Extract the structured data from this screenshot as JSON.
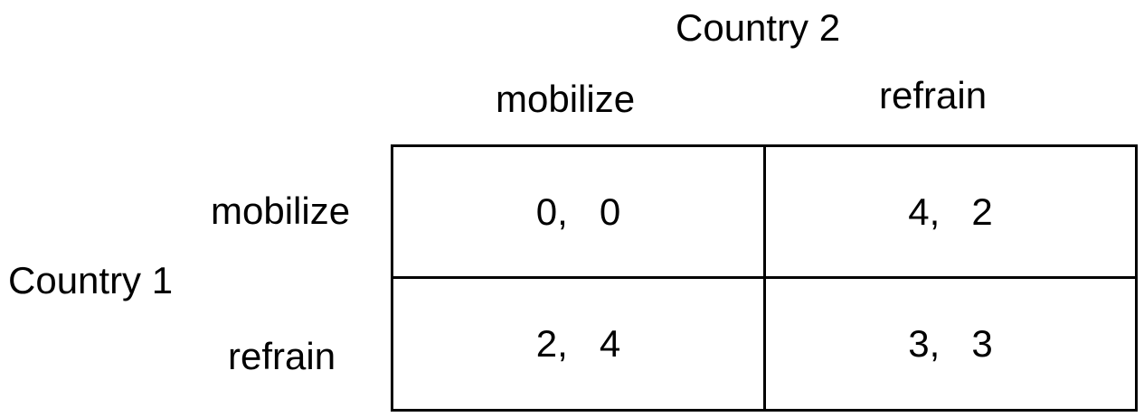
{
  "player2": {
    "name": "Country 2"
  },
  "player1": {
    "name": "Country 1"
  },
  "columns": [
    "mobilize",
    "refrain"
  ],
  "rows": [
    "mobilize",
    "refrain"
  ],
  "payoffs": [
    [
      "0,   0",
      "4,   2"
    ],
    [
      "2,   4",
      "3,   3"
    ]
  ]
}
